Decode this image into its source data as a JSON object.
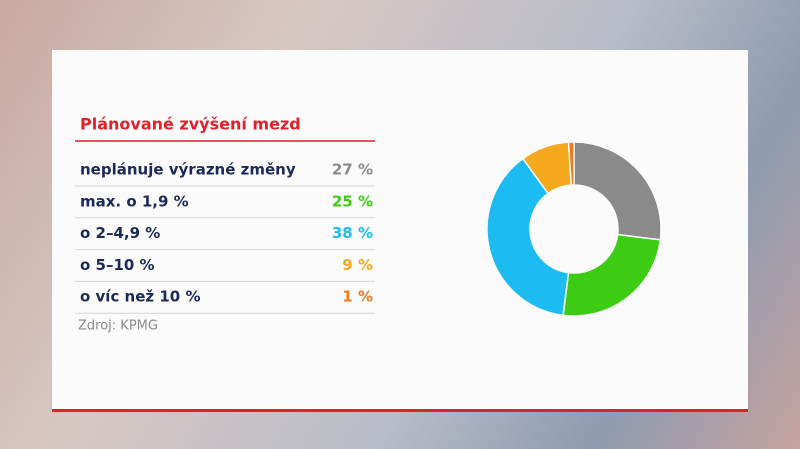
{
  "chart_data": {
    "type": "donut",
    "title": "Plánované zvýšení mezd",
    "categories": [
      "neplánuje výrazné změny",
      "max. o 1,9 %",
      "o 2–4,9 %",
      "o 5–10 %",
      "o víc než 10 %"
    ],
    "values": [
      27,
      25,
      38,
      9,
      1
    ],
    "value_labels": [
      "27 %",
      "25 %",
      "38 %",
      "9 %",
      "1 %"
    ],
    "colors": [
      "#8a8a8a",
      "#3ccc14",
      "#1cbcf2",
      "#f5a91c",
      "#f0781e"
    ],
    "source": "Zdroj: KPMG"
  }
}
